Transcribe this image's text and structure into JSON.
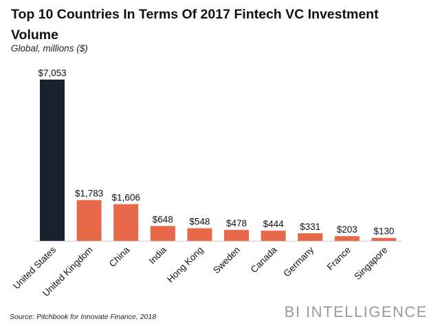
{
  "header": {
    "title": "Top 10 Countries In Terms Of 2017 Fintech VC Investment Volume",
    "subtitle": "Global, millions ($)"
  },
  "footer": {
    "source": "Source: Pitchbook for Innovate Finance, 2018",
    "brand": "BI INTELLIGENCE"
  },
  "colors": {
    "highlight": "#17222e",
    "bar": "#e8694a",
    "axis": "#c8c8c8"
  },
  "chart_data": {
    "type": "bar",
    "title": "Top 10 Countries In Terms Of 2017 Fintech VC Investment Volume",
    "subtitle": "Global, millions ($)",
    "categories": [
      "United States",
      "United Kingdom",
      "China",
      "India",
      "Hong Kong",
      "Sweden",
      "Canada",
      "Germany",
      "France",
      "Singapore"
    ],
    "values": [
      7053,
      1783,
      1606,
      648,
      548,
      478,
      444,
      331,
      203,
      130
    ],
    "labels": [
      "$7,053",
      "$1,783",
      "$1,606",
      "$648",
      "$548",
      "$478",
      "$444",
      "$331",
      "$203",
      "$130"
    ],
    "highlight_index": 0,
    "xlabel": "",
    "ylabel": "",
    "ylim": [
      0,
      7053
    ],
    "grid": false,
    "legend": "none"
  }
}
